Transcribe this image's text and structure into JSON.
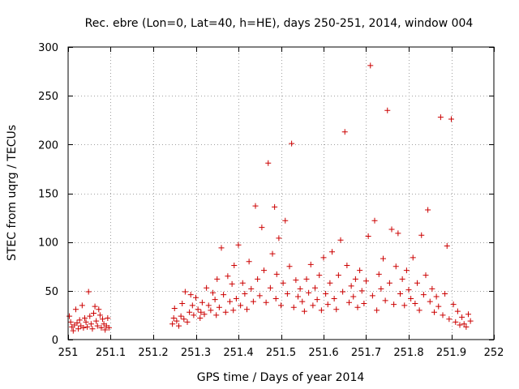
{
  "chart_data": {
    "type": "scatter",
    "title": "Rec. ebre (Lon=0, Lat=40, h=HE), days 250-251, 2014, window 004",
    "xlabel": "GPS time / Days of year 2014",
    "ylabel": "STEC from uqrg / TECUs",
    "xlim": [
      251,
      252
    ],
    "ylim": [
      0,
      300
    ],
    "x_ticks": [
      251,
      251.1,
      251.2,
      251.3,
      251.4,
      251.5,
      251.6,
      251.7,
      251.8,
      251.9,
      252
    ],
    "x_tick_labels": [
      "251",
      "251.1",
      "251.2",
      "251.3",
      "251.4",
      "251.5",
      "251.6",
      "251.7",
      "251.8",
      "251.9",
      "252"
    ],
    "y_ticks": [
      0,
      50,
      100,
      150,
      200,
      250,
      300
    ],
    "y_tick_labels": [
      "0",
      "50",
      "100",
      "150",
      "200",
      "250",
      "300"
    ],
    "marker": "+",
    "color": "#cc0000",
    "series": [
      {
        "name": "STEC",
        "points": [
          [
            251.003,
            24
          ],
          [
            251.006,
            18
          ],
          [
            251.009,
            13
          ],
          [
            251.012,
            9
          ],
          [
            251.015,
            15
          ],
          [
            251.018,
            31
          ],
          [
            251.021,
            17
          ],
          [
            251.024,
            11
          ],
          [
            251.027,
            20
          ],
          [
            251.03,
            14
          ],
          [
            251.033,
            35
          ],
          [
            251.036,
            12
          ],
          [
            251.039,
            22
          ],
          [
            251.042,
            18
          ],
          [
            251.045,
            13
          ],
          [
            251.048,
            49
          ],
          [
            251.051,
            24
          ],
          [
            251.054,
            16
          ],
          [
            251.057,
            11
          ],
          [
            251.06,
            27
          ],
          [
            251.063,
            34
          ],
          [
            251.066,
            19
          ],
          [
            251.069,
            14
          ],
          [
            251.072,
            31
          ],
          [
            251.075,
            25
          ],
          [
            251.078,
            12
          ],
          [
            251.081,
            21
          ],
          [
            251.084,
            16
          ],
          [
            251.087,
            10
          ],
          [
            251.09,
            14
          ],
          [
            251.093,
            22
          ],
          [
            251.096,
            12
          ],
          [
            251.245,
            16
          ],
          [
            251.248,
            22
          ],
          [
            251.25,
            32
          ],
          [
            251.255,
            19
          ],
          [
            251.26,
            14
          ],
          [
            251.265,
            24
          ],
          [
            251.268,
            37
          ],
          [
            251.272,
            21
          ],
          [
            251.275,
            49
          ],
          [
            251.28,
            18
          ],
          [
            251.285,
            28
          ],
          [
            251.288,
            46
          ],
          [
            251.292,
            35
          ],
          [
            251.295,
            25
          ],
          [
            251.3,
            43
          ],
          [
            251.305,
            31
          ],
          [
            251.31,
            22
          ],
          [
            251.312,
            28
          ],
          [
            251.315,
            38
          ],
          [
            251.32,
            26
          ],
          [
            251.325,
            53
          ],
          [
            251.33,
            35
          ],
          [
            251.335,
            30
          ],
          [
            251.34,
            48
          ],
          [
            251.345,
            41
          ],
          [
            251.348,
            25
          ],
          [
            251.35,
            62
          ],
          [
            251.355,
            33
          ],
          [
            251.36,
            94
          ],
          [
            251.365,
            46
          ],
          [
            251.37,
            28
          ],
          [
            251.375,
            65
          ],
          [
            251.38,
            39
          ],
          [
            251.385,
            57
          ],
          [
            251.388,
            30
          ],
          [
            251.39,
            76
          ],
          [
            251.395,
            42
          ],
          [
            251.4,
            97
          ],
          [
            251.405,
            35
          ],
          [
            251.41,
            58
          ],
          [
            251.415,
            47
          ],
          [
            251.42,
            31
          ],
          [
            251.425,
            80
          ],
          [
            251.43,
            52
          ],
          [
            251.435,
            39
          ],
          [
            251.44,
            137
          ],
          [
            251.445,
            62
          ],
          [
            251.45,
            45
          ],
          [
            251.455,
            115
          ],
          [
            251.46,
            71
          ],
          [
            251.465,
            38
          ],
          [
            251.47,
            181
          ],
          [
            251.475,
            53
          ],
          [
            251.48,
            88
          ],
          [
            251.485,
            136
          ],
          [
            251.488,
            42
          ],
          [
            251.49,
            67
          ],
          [
            251.495,
            104
          ],
          [
            251.5,
            35
          ],
          [
            251.505,
            58
          ],
          [
            251.51,
            122
          ],
          [
            251.515,
            47
          ],
          [
            251.52,
            75
          ],
          [
            251.525,
            201
          ],
          [
            251.53,
            33
          ],
          [
            251.535,
            61
          ],
          [
            251.54,
            44
          ],
          [
            251.545,
            52
          ],
          [
            251.55,
            39
          ],
          [
            251.555,
            29
          ],
          [
            251.56,
            62
          ],
          [
            251.565,
            48
          ],
          [
            251.57,
            77
          ],
          [
            251.575,
            35
          ],
          [
            251.58,
            53
          ],
          [
            251.585,
            41
          ],
          [
            251.59,
            66
          ],
          [
            251.595,
            30
          ],
          [
            251.6,
            84
          ],
          [
            251.605,
            47
          ],
          [
            251.61,
            36
          ],
          [
            251.615,
            58
          ],
          [
            251.62,
            90
          ],
          [
            251.625,
            42
          ],
          [
            251.63,
            31
          ],
          [
            251.635,
            66
          ],
          [
            251.64,
            102
          ],
          [
            251.645,
            49
          ],
          [
            251.65,
            213
          ],
          [
            251.655,
            76
          ],
          [
            251.66,
            38
          ],
          [
            251.665,
            55
          ],
          [
            251.67,
            44
          ],
          [
            251.675,
            62
          ],
          [
            251.68,
            33
          ],
          [
            251.685,
            71
          ],
          [
            251.69,
            50
          ],
          [
            251.695,
            37
          ],
          [
            251.7,
            60
          ],
          [
            251.705,
            106
          ],
          [
            251.71,
            281
          ],
          [
            251.715,
            45
          ],
          [
            251.72,
            122
          ],
          [
            251.725,
            30
          ],
          [
            251.73,
            67
          ],
          [
            251.735,
            52
          ],
          [
            251.74,
            83
          ],
          [
            251.745,
            40
          ],
          [
            251.75,
            235
          ],
          [
            251.755,
            58
          ],
          [
            251.76,
            113
          ],
          [
            251.765,
            36
          ],
          [
            251.77,
            75
          ],
          [
            251.775,
            109
          ],
          [
            251.78,
            47
          ],
          [
            251.785,
            62
          ],
          [
            251.79,
            35
          ],
          [
            251.795,
            71
          ],
          [
            251.8,
            51
          ],
          [
            251.805,
            42
          ],
          [
            251.81,
            84
          ],
          [
            251.815,
            37
          ],
          [
            251.82,
            58
          ],
          [
            251.825,
            30
          ],
          [
            251.83,
            107
          ],
          [
            251.835,
            46
          ],
          [
            251.84,
            66
          ],
          [
            251.845,
            133
          ],
          [
            251.85,
            39
          ],
          [
            251.855,
            52
          ],
          [
            251.86,
            28
          ],
          [
            251.865,
            44
          ],
          [
            251.87,
            34
          ],
          [
            251.875,
            228
          ],
          [
            251.88,
            25
          ],
          [
            251.885,
            47
          ],
          [
            251.89,
            96
          ],
          [
            251.895,
            21
          ],
          [
            251.9,
            226
          ],
          [
            251.905,
            36
          ],
          [
            251.91,
            18
          ],
          [
            251.915,
            29
          ],
          [
            251.92,
            15
          ],
          [
            251.925,
            23
          ],
          [
            251.93,
            16
          ],
          [
            251.935,
            13
          ],
          [
            251.94,
            26
          ],
          [
            251.945,
            19
          ]
        ]
      }
    ]
  }
}
